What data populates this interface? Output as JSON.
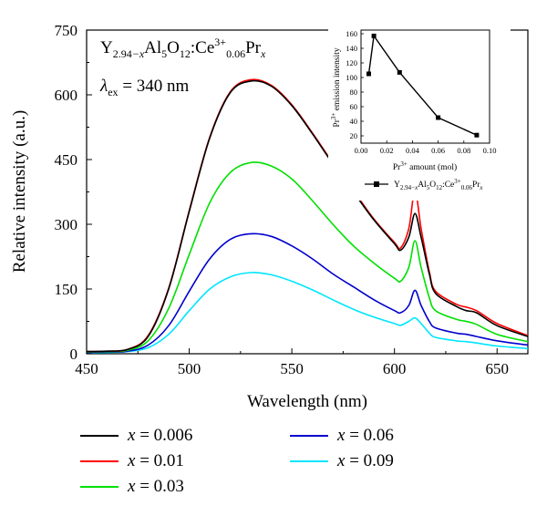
{
  "chart_data": [
    {
      "type": "line",
      "xlabel": "Wavelength (nm)",
      "ylabel": "Relative intensity (a.u.)",
      "xlim": [
        450,
        665
      ],
      "ylim": [
        0,
        750
      ],
      "x_ticks": [
        "450",
        "500",
        "550",
        "600",
        "650"
      ],
      "y_ticks": [
        "0",
        "150",
        "300",
        "450",
        "600",
        "750"
      ],
      "annotation_formula": "Y2.94−xAl5O12:Ce3+0.06Prx",
      "annotation_excitation": "λex = 340 nm",
      "x": [
        450,
        460,
        470,
        480,
        490,
        500,
        510,
        520,
        530,
        540,
        550,
        560,
        570,
        580,
        590,
        600,
        603,
        607,
        610,
        613,
        617,
        620,
        630,
        635,
        640,
        650,
        665
      ],
      "series": [
        {
          "name": "x = 0.006",
          "color": "#000000",
          "values": [
            5,
            6,
            10,
            40,
            150,
            330,
            500,
            605,
            632,
            620,
            575,
            510,
            440,
            375,
            310,
            255,
            240,
            270,
            325,
            270,
            185,
            140,
            110,
            100,
            95,
            65,
            40
          ]
        },
        {
          "name": "x = 0.01",
          "color": "#ff0000",
          "values": [
            5,
            6,
            10,
            42,
            152,
            332,
            502,
            607,
            635,
            622,
            577,
            512,
            442,
            378,
            312,
            258,
            245,
            290,
            378,
            290,
            190,
            145,
            115,
            108,
            100,
            70,
            42
          ]
        },
        {
          "name": "x = 0.03",
          "color": "#00e000",
          "values": [
            4,
            5,
            8,
            30,
            105,
            230,
            350,
            420,
            443,
            435,
            405,
            355,
            300,
            250,
            210,
            175,
            168,
            200,
            262,
            200,
            130,
            100,
            80,
            75,
            68,
            45,
            28
          ]
        },
        {
          "name": "x = 0.06",
          "color": "#0000cc",
          "values": [
            3,
            4,
            6,
            20,
            65,
            145,
            220,
            265,
            278,
            272,
            250,
            220,
            185,
            155,
            125,
            100,
            95,
            112,
            147,
            112,
            75,
            60,
            48,
            45,
            40,
            30,
            20
          ]
        },
        {
          "name": "x = 0.09",
          "color": "#00e5ff",
          "values": [
            2,
            3,
            5,
            14,
            45,
            100,
            150,
            178,
            188,
            183,
            168,
            148,
            125,
            103,
            85,
            70,
            66,
            75,
            83,
            70,
            48,
            38,
            30,
            28,
            25,
            18,
            12
          ]
        }
      ]
    },
    {
      "type": "line",
      "ylabel": "Pr3+ emission intensity",
      "xlabel": "Pr3+ amount (mol)",
      "xlim": [
        0.0,
        0.1
      ],
      "ylim": [
        10,
        165
      ],
      "x_ticks": [
        "0.00",
        "0.02",
        "0.04",
        "0.06",
        "0.08",
        "0.10"
      ],
      "y_ticks": [
        "20",
        "40",
        "60",
        "80",
        "100",
        "120",
        "140",
        "160"
      ],
      "legend": "Y2.94−xAl5O12:Ce3+0.06Prx",
      "x": [
        0.006,
        0.01,
        0.03,
        0.06,
        0.09
      ],
      "values": [
        105,
        157,
        107,
        45,
        21
      ]
    }
  ],
  "legend": {
    "items": [
      {
        "var": "x",
        "text": " = 0.006",
        "color": "#000000"
      },
      {
        "var": "x",
        "text": " = 0.01",
        "color": "#ff0000"
      },
      {
        "var": "x",
        "text": " = 0.03",
        "color": "#00e000"
      },
      {
        "var": "x",
        "text": " = 0.06",
        "color": "#0000cc"
      },
      {
        "var": "x",
        "text": " = 0.09",
        "color": "#00e5ff"
      }
    ]
  }
}
